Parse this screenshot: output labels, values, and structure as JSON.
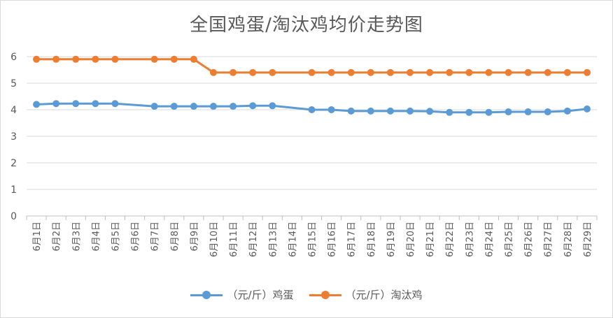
{
  "chart_data": {
    "type": "line",
    "title": "全国鸡蛋/淘汰鸡均价走势图",
    "xlabel": "",
    "ylabel": "",
    "ylim": [
      0,
      6
    ],
    "yticks": [
      0,
      1,
      2,
      3,
      4,
      5,
      6
    ],
    "grid": true,
    "legend_position": "bottom",
    "categories": [
      "6月1日",
      "6月2日",
      "6月3日",
      "6月4日",
      "6月5日",
      "6月6日",
      "6月7日",
      "6月8日",
      "6月9日",
      "6月10日",
      "6月11日",
      "6月12日",
      "6月13日",
      "6月14日",
      "6月15日",
      "6月16日",
      "6月17日",
      "6月18日",
      "6月19日",
      "6月20日",
      "6月21日",
      "6月22日",
      "6月23日",
      "6月24日",
      "6月25日",
      "6月26日",
      "6月27日",
      "6月28日",
      "6月29日"
    ],
    "series": [
      {
        "name": "（元/斤）鸡蛋",
        "color": "#5b9bd5",
        "values": [
          4.2,
          4.23,
          4.23,
          4.23,
          4.23,
          null,
          4.13,
          4.13,
          4.13,
          4.13,
          4.13,
          4.15,
          4.15,
          null,
          4.0,
          4.0,
          3.95,
          3.95,
          3.95,
          3.95,
          3.94,
          3.9,
          3.9,
          3.9,
          3.92,
          3.92,
          3.92,
          3.95,
          4.03
        ]
      },
      {
        "name": "（元/斤）淘汰鸡",
        "color": "#ed7d31",
        "values": [
          5.9,
          5.9,
          5.9,
          5.9,
          5.9,
          null,
          5.9,
          5.9,
          5.9,
          5.4,
          5.4,
          5.4,
          5.4,
          null,
          5.4,
          5.4,
          5.4,
          5.4,
          5.4,
          5.4,
          5.4,
          5.4,
          5.4,
          5.4,
          5.4,
          5.4,
          5.4,
          5.4,
          5.4
        ]
      }
    ]
  }
}
